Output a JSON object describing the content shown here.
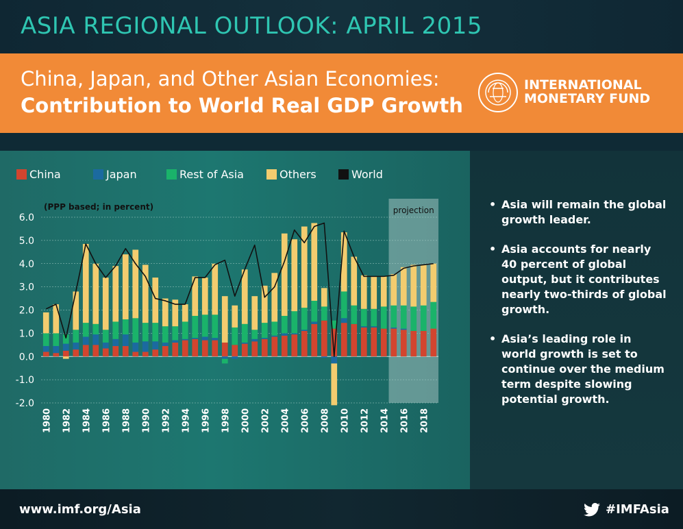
{
  "header": {
    "title": "ASIA REGIONAL OUTLOOK: APRIL 2015",
    "subtitle_line1": "China, Japan, and Other Asian Economies:",
    "subtitle_line2": "Contribution to World Real GDP Growth"
  },
  "logo": {
    "line1": "INTERNATIONAL",
    "line2": "MONETARY FUND",
    "seal_text": "INTERNATIONAL MONETARY FUND"
  },
  "colors": {
    "china": "#d2452f",
    "japan": "#1b6aa0",
    "rest_of_asia": "#1ab36a",
    "others": "#f3cc6f",
    "world": "#111111"
  },
  "legend": [
    {
      "key": "china",
      "label": "China"
    },
    {
      "key": "japan",
      "label": "Japan"
    },
    {
      "key": "rest_of_asia",
      "label": "Rest of Asia"
    },
    {
      "key": "others",
      "label": "Others"
    },
    {
      "key": "world",
      "label": "World"
    }
  ],
  "bullets": [
    "Asia will remain the global growth leader.",
    "Asia accounts for nearly 40 percent of global output, but it contributes nearly two-thirds of global growth.",
    "Asia’s leading role in world growth is set to continue over the medium term despite slowing potential growth."
  ],
  "footer": {
    "url": "www.imf.org/Asia",
    "hashtag": "#IMFAsia"
  },
  "chart_data": {
    "type": "bar",
    "stacked": true,
    "title": "",
    "unit_note": "(PPP based; in percent)",
    "ylim": [
      -2.0,
      6.0
    ],
    "yticks": [
      "6.0",
      "5.0",
      "4.0",
      "3.0",
      "2.0",
      "1.0",
      "0.0",
      "-1.0",
      "-2.0"
    ],
    "projection_label": "projection",
    "projection_from": 2015,
    "x": [
      1980,
      1981,
      1982,
      1983,
      1984,
      1985,
      1986,
      1987,
      1988,
      1989,
      1990,
      1991,
      1992,
      1993,
      1994,
      1995,
      1996,
      1997,
      1998,
      1999,
      2000,
      2001,
      2002,
      2003,
      2004,
      2005,
      2006,
      2007,
      2008,
      2009,
      2010,
      2011,
      2012,
      2013,
      2014,
      2015,
      2016,
      2017,
      2018,
      2019
    ],
    "x_tick_labels": [
      "1980",
      "1982",
      "1984",
      "1986",
      "1988",
      "1990",
      "1992",
      "1994",
      "1996",
      "1998",
      "2000",
      "2002",
      "2004",
      "2006",
      "2008",
      "2010",
      "2012",
      "2014",
      "2016",
      "2018"
    ],
    "series": [
      {
        "name": "China",
        "key": "china",
        "values": [
          0.2,
          0.15,
          0.25,
          0.3,
          0.5,
          0.5,
          0.35,
          0.45,
          0.45,
          0.2,
          0.2,
          0.3,
          0.45,
          0.6,
          0.7,
          0.75,
          0.7,
          0.7,
          0.6,
          0.5,
          0.55,
          0.65,
          0.75,
          0.85,
          0.9,
          0.95,
          1.1,
          1.4,
          1.55,
          1.2,
          1.45,
          1.4,
          1.25,
          1.25,
          1.2,
          1.2,
          1.15,
          1.1,
          1.1,
          1.2
        ]
      },
      {
        "name": "Japan",
        "key": "japan",
        "values": [
          0.25,
          0.3,
          0.3,
          0.3,
          0.35,
          0.45,
          0.25,
          0.3,
          0.5,
          0.4,
          0.45,
          0.35,
          0.15,
          0.1,
          0.05,
          0.05,
          0.15,
          0.1,
          -0.1,
          -0.1,
          0.05,
          0.1,
          0.05,
          0.05,
          0.1,
          0.05,
          0.05,
          0.1,
          -0.05,
          -0.3,
          0.2,
          0.0,
          0.05,
          0.05,
          0.0,
          0.05,
          0.05,
          0.0,
          0.0,
          0.0
        ]
      },
      {
        "name": "Rest of Asia",
        "key": "rest_of_asia",
        "values": [
          0.55,
          0.55,
          0.4,
          0.55,
          0.6,
          0.45,
          0.55,
          0.75,
          0.65,
          1.05,
          0.8,
          0.8,
          0.7,
          0.6,
          0.75,
          0.95,
          0.95,
          1.0,
          -0.2,
          0.75,
          0.8,
          0.4,
          0.65,
          0.6,
          0.75,
          0.95,
          0.95,
          0.9,
          0.6,
          0.35,
          1.15,
          0.8,
          0.75,
          0.75,
          0.95,
          0.95,
          1.0,
          1.05,
          1.1,
          1.15
        ]
      },
      {
        "name": "Others",
        "key": "others",
        "values": [
          0.9,
          1.25,
          -0.1,
          1.65,
          3.4,
          2.6,
          2.25,
          2.4,
          2.8,
          2.95,
          2.5,
          1.95,
          1.2,
          1.15,
          0.75,
          1.7,
          1.6,
          2.2,
          2.0,
          0.95,
          2.35,
          1.45,
          1.6,
          2.1,
          3.55,
          3.1,
          3.5,
          3.35,
          0.8,
          -1.8,
          2.55,
          2.1,
          1.45,
          1.4,
          1.3,
          1.35,
          1.65,
          1.8,
          1.75,
          1.65
        ]
      },
      {
        "name": "World",
        "key": "world",
        "type": "line",
        "values": [
          2.05,
          2.25,
          0.8,
          2.8,
          4.85,
          4.0,
          3.4,
          3.9,
          4.65,
          4.0,
          3.45,
          2.5,
          2.4,
          2.25,
          2.25,
          3.4,
          3.4,
          3.95,
          4.15,
          2.6,
          3.75,
          4.8,
          2.55,
          3.0,
          4.1,
          5.45,
          4.9,
          5.6,
          5.75,
          0.0,
          5.4,
          4.3,
          3.45,
          3.45,
          3.45,
          3.5,
          3.8,
          3.9,
          3.95,
          4.0
        ]
      }
    ]
  }
}
